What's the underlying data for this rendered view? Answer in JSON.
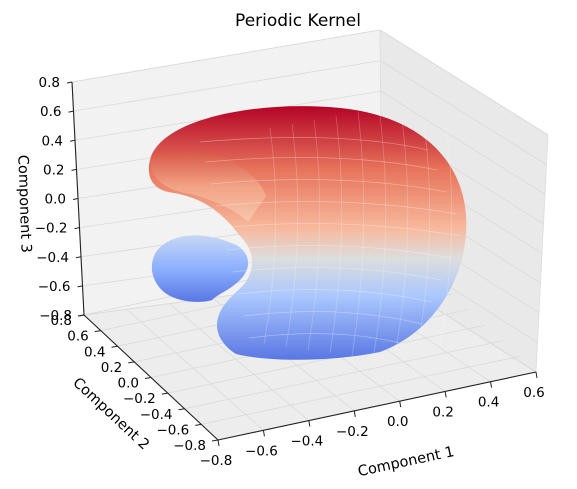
{
  "chart_data": {
    "type": "surface3d",
    "title": "Periodic Kernel",
    "xlabel": "Component 1",
    "ylabel": "Component 2",
    "zlabel": "Component 3",
    "xlim": [
      -0.8,
      0.6
    ],
    "ylim": [
      -0.8,
      0.8
    ],
    "zlim": [
      -0.8,
      0.8
    ],
    "xticks": [
      "−0.8",
      "−0.6",
      "−0.4",
      "−0.2",
      "0.0",
      "0.2",
      "0.4",
      "0.6"
    ],
    "yticks": [
      "−0.8",
      "−0.6",
      "−0.4",
      "−0.2",
      "0.0",
      "0.2",
      "0.4",
      "0.6",
      "0.8"
    ],
    "zticks": [
      "−0.8",
      "−0.6",
      "−0.4",
      "−0.2",
      "0.0",
      "0.2",
      "0.4",
      "0.6",
      "0.8"
    ],
    "colormap": "coolwarm",
    "colormap_colors": [
      "#3b4cc0",
      "#8db0fe",
      "#dddddd",
      "#f49a7b",
      "#b40426"
    ],
    "surface_color_by": "Component 3",
    "grid": true,
    "pane_color": "#f2f2f2"
  }
}
